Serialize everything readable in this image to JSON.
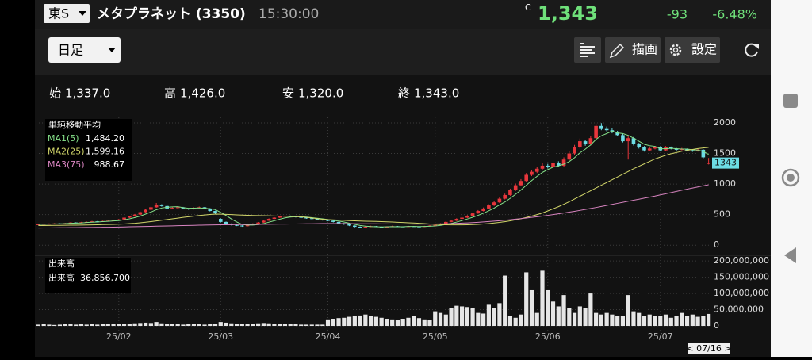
{
  "header": {
    "market": "東S",
    "name": "メタプラネット (3350)",
    "time": "15:30:00",
    "price_flag": "C",
    "price": "1,343",
    "change": "-93",
    "change_pct": "-6.48%"
  },
  "toolbar": {
    "period": "日足",
    "draw": "描画",
    "settings": "設定"
  },
  "ohlc": [
    {
      "label": "始",
      "value": "1,337.0"
    },
    {
      "label": "高",
      "value": "1,426.0"
    },
    {
      "label": "安",
      "value": "1,320.0"
    },
    {
      "label": "終",
      "value": "1,343.0"
    }
  ],
  "chart_data": {
    "type": "candlestick",
    "up_color": "#e8363c",
    "down_color": "#6cdce4",
    "ylim": [
      -140,
      2090
    ],
    "yticks": [
      0,
      500,
      1000,
      1500,
      2000
    ],
    "grid": true,
    "xticks": [
      {
        "value": 15,
        "label": "25/02"
      },
      {
        "value": 34,
        "label": "25/03"
      },
      {
        "value": 54,
        "label": "25/04"
      },
      {
        "value": 74,
        "label": "25/05"
      },
      {
        "value": 95,
        "label": "25/06"
      },
      {
        "value": 116,
        "label": "25/07"
      }
    ],
    "candles": [
      [
        335,
        348,
        330,
        340
      ],
      [
        340,
        350,
        336,
        345
      ],
      [
        345,
        356,
        340,
        350
      ],
      [
        350,
        360,
        346,
        355
      ],
      [
        355,
        358,
        344,
        350
      ],
      [
        350,
        364,
        348,
        360
      ],
      [
        360,
        375,
        356,
        370
      ],
      [
        370,
        374,
        360,
        365
      ],
      [
        365,
        380,
        362,
        375
      ],
      [
        375,
        386,
        370,
        380
      ],
      [
        380,
        396,
        376,
        390
      ],
      [
        390,
        394,
        380,
        385
      ],
      [
        385,
        400,
        382,
        395
      ],
      [
        395,
        406,
        390,
        400
      ],
      [
        400,
        416,
        396,
        410
      ],
      [
        410,
        428,
        405,
        420
      ],
      [
        420,
        458,
        416,
        450
      ],
      [
        450,
        480,
        444,
        470
      ],
      [
        470,
        510,
        465,
        500
      ],
      [
        500,
        550,
        495,
        540
      ],
      [
        540,
        592,
        532,
        580
      ],
      [
        580,
        630,
        572,
        620
      ],
      [
        620,
        690,
        612,
        660
      ],
      [
        660,
        670,
        630,
        640
      ],
      [
        640,
        648,
        590,
        600
      ],
      [
        600,
        620,
        592,
        610
      ],
      [
        610,
        630,
        600,
        620
      ],
      [
        620,
        626,
        592,
        600
      ],
      [
        600,
        606,
        580,
        590
      ],
      [
        590,
        618,
        584,
        610
      ],
      [
        610,
        632,
        604,
        620
      ],
      [
        620,
        624,
        592,
        600
      ],
      [
        600,
        606,
        552,
        560
      ],
      [
        560,
        566,
        512,
        520
      ],
      [
        430,
        440,
        372,
        380
      ],
      [
        380,
        386,
        342,
        350
      ],
      [
        350,
        356,
        322,
        330
      ],
      [
        330,
        336,
        312,
        320
      ],
      [
        320,
        326,
        300,
        310
      ],
      [
        310,
        338,
        306,
        330
      ],
      [
        330,
        358,
        326,
        350
      ],
      [
        350,
        378,
        346,
        370
      ],
      [
        370,
        408,
        366,
        400
      ],
      [
        400,
        438,
        396,
        430
      ],
      [
        430,
        458,
        426,
        450
      ],
      [
        450,
        478,
        446,
        470
      ],
      [
        470,
        490,
        464,
        480
      ],
      [
        480,
        484,
        462,
        470
      ],
      [
        470,
        474,
        452,
        460
      ],
      [
        460,
        464,
        442,
        450
      ],
      [
        450,
        456,
        432,
        440
      ],
      [
        440,
        446,
        422,
        430
      ],
      [
        430,
        436,
        412,
        420
      ],
      [
        420,
        426,
        402,
        410
      ],
      [
        410,
        414,
        392,
        400
      ],
      [
        400,
        404,
        372,
        380
      ],
      [
        380,
        384,
        352,
        360
      ],
      [
        360,
        364,
        332,
        340
      ],
      [
        340,
        344,
        312,
        320
      ],
      [
        320,
        324,
        292,
        300
      ],
      [
        300,
        306,
        282,
        290
      ],
      [
        290,
        308,
        286,
        300
      ],
      [
        300,
        318,
        296,
        310
      ],
      [
        310,
        314,
        294,
        300
      ],
      [
        300,
        304,
        284,
        290
      ],
      [
        290,
        308,
        286,
        300
      ],
      [
        300,
        318,
        296,
        310
      ],
      [
        310,
        314,
        298,
        305
      ],
      [
        305,
        308,
        294,
        300
      ],
      [
        300,
        316,
        296,
        310
      ],
      [
        310,
        314,
        300,
        305
      ],
      [
        305,
        308,
        294,
        300
      ],
      [
        300,
        316,
        296,
        310
      ],
      [
        310,
        328,
        306,
        320
      ],
      [
        320,
        338,
        316,
        330
      ],
      [
        330,
        358,
        326,
        350
      ],
      [
        350,
        390,
        346,
        380
      ],
      [
        380,
        410,
        374,
        400
      ],
      [
        400,
        440,
        394,
        430
      ],
      [
        430,
        462,
        424,
        450
      ],
      [
        450,
        492,
        444,
        480
      ],
      [
        480,
        532,
        474,
        520
      ],
      [
        520,
        574,
        512,
        560
      ],
      [
        560,
        616,
        552,
        600
      ],
      [
        600,
        668,
        592,
        650
      ],
      [
        650,
        720,
        640,
        700
      ],
      [
        700,
        780,
        690,
        760
      ],
      [
        760,
        842,
        748,
        820
      ],
      [
        820,
        924,
        808,
        900
      ],
      [
        900,
        1008,
        886,
        980
      ],
      [
        980,
        1080,
        964,
        1050
      ],
      [
        1050,
        1180,
        1036,
        1150
      ],
      [
        1150,
        1230,
        1130,
        1200
      ],
      [
        1200,
        1284,
        1180,
        1250
      ],
      [
        1250,
        1340,
        1228,
        1300
      ],
      [
        1300,
        1330,
        1256,
        1280
      ],
      [
        1280,
        1384,
        1262,
        1350
      ],
      [
        1350,
        1372,
        1280,
        1300
      ],
      [
        1300,
        1436,
        1284,
        1400
      ],
      [
        1400,
        1540,
        1384,
        1500
      ],
      [
        1500,
        1640,
        1480,
        1600
      ],
      [
        1600,
        1744,
        1580,
        1700
      ],
      [
        1700,
        1724,
        1626,
        1650
      ],
      [
        1650,
        1790,
        1630,
        1750
      ],
      [
        1750,
        1990,
        1730,
        1950
      ],
      [
        1950,
        1996,
        1880,
        1900
      ],
      [
        1900,
        1940,
        1860,
        1880
      ],
      [
        1880,
        1910,
        1830,
        1850
      ],
      [
        1850,
        1870,
        1780,
        1800
      ],
      [
        1800,
        1820,
        1680,
        1700
      ],
      [
        1700,
        1780,
        1400,
        1750
      ],
      [
        1750,
        1770,
        1630,
        1650
      ],
      [
        1650,
        1672,
        1580,
        1600
      ],
      [
        1600,
        1620,
        1530,
        1550
      ],
      [
        1550,
        1600,
        1536,
        1580
      ],
      [
        1580,
        1620,
        1566,
        1600
      ],
      [
        1600,
        1616,
        1536,
        1550
      ],
      [
        1550,
        1620,
        1540,
        1600
      ],
      [
        1600,
        1612,
        1566,
        1580
      ],
      [
        1580,
        1590,
        1546,
        1560
      ],
      [
        1560,
        1590,
        1550,
        1570
      ],
      [
        1570,
        1580,
        1536,
        1550
      ],
      [
        1550,
        1560,
        1526,
        1540
      ],
      [
        1540,
        1576,
        1530,
        1560
      ],
      [
        1560,
        1570,
        1420,
        1436
      ],
      [
        1337,
        1426,
        1320,
        1343
      ]
    ],
    "last_price_color": "#6cdce4",
    "ma_title": "単純移動平均",
    "series": [
      {
        "name": "MA1(5)",
        "value_label": "1,484.20",
        "color": "#86e28a",
        "values": [
          340,
          342,
          345,
          348,
          348,
          352,
          357,
          360,
          363,
          370,
          376,
          379,
          385,
          390,
          396,
          402,
          415,
          431,
          452,
          476,
          508,
          542,
          580,
          608,
          620,
          626,
          630,
          614,
          604,
          606,
          608,
          604,
          596,
          582,
          536,
          486,
          428,
          380,
          338,
          328,
          328,
          336,
          352,
          376,
          400,
          424,
          446,
          460,
          466,
          466,
          460,
          450,
          440,
          430,
          420,
          406,
          394,
          378,
          360,
          340,
          322,
          310,
          304,
          300,
          298,
          300,
          302,
          301,
          301,
          305,
          306,
          304,
          306,
          309,
          313,
          323,
          338,
          356,
          378,
          402,
          428,
          456,
          488,
          522,
          562,
          606,
          658,
          706,
          766,
          832,
          902,
          980,
          1056,
          1126,
          1190,
          1236,
          1276,
          1296,
          1326,
          1366,
          1430,
          1510,
          1570,
          1640,
          1730,
          1790,
          1826,
          1866,
          1836,
          1826,
          1796,
          1750,
          1700,
          1650,
          1626,
          1616,
          1576,
          1576,
          1582,
          1578,
          1572,
          1572,
          1560,
          1556,
          1533,
          1484.2
        ]
      },
      {
        "name": "MA2(25)",
        "value_label": "1,599.16",
        "color": "#d2d66a",
        "values": [
          320,
          321,
          322,
          323,
          324,
          325,
          326,
          327,
          328,
          330,
          332,
          334,
          336,
          338,
          340,
          343,
          347,
          352,
          358,
          366,
          375,
          385,
          396,
          408,
          419,
          430,
          442,
          454,
          465,
          475,
          485,
          494,
          502,
          508,
          506,
          503,
          500,
          496,
          492,
          489,
          486,
          484,
          482,
          480,
          478,
          476,
          474,
          471,
          468,
          463,
          455,
          445,
          434,
          424,
          418,
          414,
          410,
          406,
          402,
          398,
          395,
          392,
          390,
          388,
          385,
          382,
          378,
          374,
          370,
          366,
          362,
          357,
          352,
          346,
          341,
          337,
          334,
          332,
          331,
          331,
          333,
          336,
          340,
          346,
          353,
          362,
          372,
          384,
          398,
          414,
          432,
          453,
          476,
          500,
          526,
          560,
          595,
          630,
          670,
          710,
          755,
          800,
          845,
          890,
          935,
          980,
          1025,
          1070,
          1115,
          1160,
          1205,
          1250,
          1290,
          1330,
          1370,
          1410,
          1440,
          1470,
          1495,
          1515,
          1535,
          1550,
          1565,
          1580,
          1590,
          1599.16
        ]
      },
      {
        "name": "MA3(75)",
        "value_label": "988.67",
        "color": "#d884c0",
        "values": [
          280,
          281,
          282,
          283,
          284,
          285,
          286,
          287,
          288,
          289,
          290,
          291,
          292,
          293,
          294,
          296,
          298,
          300,
          302,
          304,
          306,
          308,
          310,
          312,
          314,
          316,
          318,
          320,
          322,
          324,
          326,
          328,
          330,
          332,
          333,
          334,
          335,
          336,
          337,
          338,
          339,
          340,
          341,
          342,
          343,
          344,
          345,
          346,
          347,
          348,
          349,
          350,
          351,
          352,
          352,
          352,
          352,
          352,
          351,
          351,
          350,
          350,
          349,
          349,
          348,
          348,
          347,
          347,
          346,
          346,
          345,
          345,
          344,
          344,
          346,
          348,
          350,
          353,
          356,
          360,
          364,
          369,
          374,
          380,
          386,
          393,
          400,
          408,
          416,
          425,
          434,
          444,
          454,
          465,
          476,
          488,
          500,
          513,
          526,
          540,
          554,
          569,
          584,
          600,
          616,
          633,
          650,
          667,
          684,
          701,
          718,
          735,
          752,
          769,
          786,
          803,
          822,
          841,
          860,
          879,
          898,
          917,
          935,
          953,
          971,
          988.67
        ]
      }
    ],
    "cursor_label": "< 07/16 >",
    "volume": {
      "title": "出来高",
      "label": "出来高",
      "value_label": "36,856,700",
      "color": "#e6e6e6",
      "ylim": [
        -17000000,
        210000000
      ],
      "yticks": [
        0,
        {
          "value": 50000000,
          "label": "50,000,000"
        },
        {
          "value": 100000000,
          "label": "100,000,000"
        },
        {
          "value": 150000000,
          "label": "150,000,000"
        },
        {
          "value": 200000000,
          "label": "200,000,000"
        }
      ],
      "values": [
        4000000,
        5000000,
        4000000,
        3000000,
        4000000,
        5000000,
        6000000,
        4000000,
        5000000,
        4000000,
        5000000,
        4000000,
        5000000,
        6000000,
        5000000,
        5000000,
        7000000,
        6000000,
        8000000,
        9000000,
        10000000,
        9000000,
        12000000,
        8000000,
        6000000,
        5000000,
        5000000,
        4000000,
        5000000,
        6000000,
        5000000,
        4000000,
        6000000,
        5000000,
        12000000,
        10000000,
        8000000,
        7000000,
        6000000,
        6000000,
        7000000,
        8000000,
        9000000,
        8000000,
        7000000,
        6000000,
        5000000,
        5000000,
        5000000,
        4000000,
        4000000,
        4000000,
        4000000,
        4000000,
        20000000,
        22000000,
        24000000,
        25000000,
        28000000,
        30000000,
        32000000,
        35000000,
        30000000,
        28000000,
        25000000,
        22000000,
        20000000,
        18000000,
        22000000,
        25000000,
        30000000,
        24000000,
        20000000,
        18000000,
        45000000,
        40000000,
        35000000,
        55000000,
        62000000,
        60000000,
        58000000,
        55000000,
        40000000,
        38000000,
        65000000,
        55000000,
        70000000,
        155000000,
        30000000,
        25000000,
        35000000,
        165000000,
        110000000,
        40000000,
        170000000,
        110000000,
        75000000,
        60000000,
        95000000,
        55000000,
        40000000,
        60000000,
        55000000,
        100000000,
        40000000,
        35000000,
        40000000,
        35000000,
        30000000,
        30000000,
        95000000,
        45000000,
        40000000,
        30000000,
        35000000,
        30000000,
        30000000,
        35000000,
        25000000,
        30000000,
        40000000,
        30000000,
        35000000,
        28000000,
        30000000,
        36856700
      ]
    }
  }
}
